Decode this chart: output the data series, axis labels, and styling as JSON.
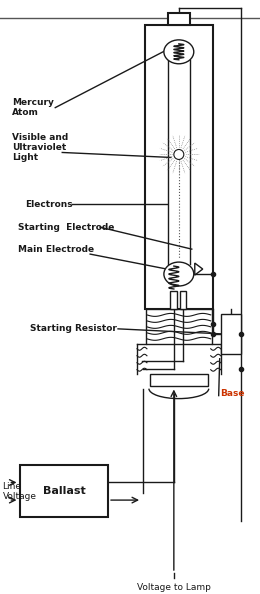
{
  "bg_color": "#ffffff",
  "line_color": "#1a1a1a",
  "labels": {
    "mercury_atom": "Mercury\nAtom",
    "visible_light": "Visible and\nUltraviolet\nLight",
    "electrons": "Electrons",
    "starting_electrode": "Starting  Electrode",
    "main_electrode": "Main Electrode",
    "starting_resistor": "Starting Resistor",
    "base": "Base",
    "ballast": "Ballast",
    "line_voltage": "Line\nVoltage",
    "voltage_to_lamp": "Voltage to Lamp"
  },
  "font_size": 6.5,
  "fig_width": 2.6,
  "fig_height": 5.94
}
